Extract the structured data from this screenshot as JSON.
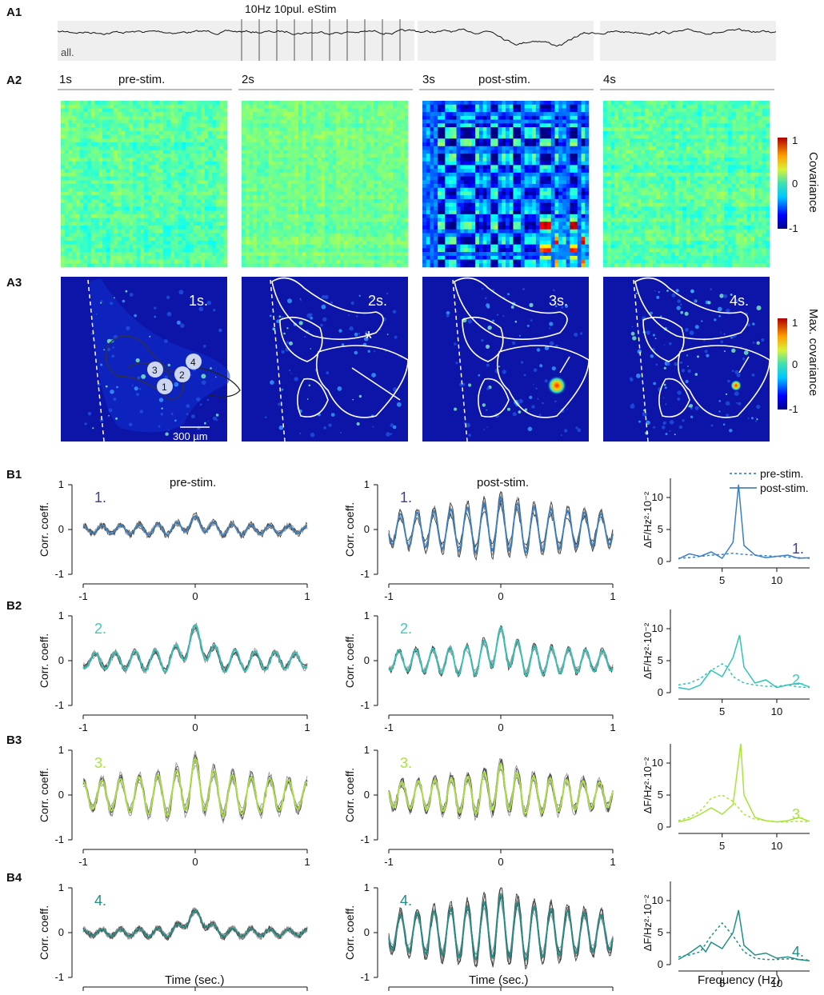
{
  "panels": {
    "A1": "A1",
    "A2": "A2",
    "A3": "A3",
    "B1": "B1",
    "B2": "B2",
    "B3": "B3",
    "B4": "B4"
  },
  "a1": {
    "trace_label": "all.",
    "stim_label": "10Hz 10pul. eStim",
    "pulse_count": 10
  },
  "a2": {
    "seconds": [
      "1s",
      "2s",
      "3s",
      "4s"
    ],
    "pre_label": "pre-stim.",
    "post_label": "post-stim.",
    "colorbar": {
      "title": "Covariance",
      "ticks": [
        "1",
        "0",
        "-1"
      ]
    }
  },
  "a3": {
    "seconds": [
      "1s.",
      "2s.",
      "3s.",
      "4s."
    ],
    "scalebar": "300 µm",
    "roi_numbers": [
      "1",
      "2",
      "3",
      "4"
    ],
    "asterisk": "*",
    "colorbar": {
      "title": "Max. covariance",
      "ticks": [
        "1",
        "0",
        "-1"
      ]
    }
  },
  "colors": {
    "roi1": "#3a7fc0",
    "roi2": "#2fc4b8",
    "roi3": "#a9e33a",
    "roi4": "#1f8f86",
    "roi1_num": "#3b3f8c",
    "roi2_num": "#3cc9bf",
    "roi3_num": "#a9e33a",
    "roi4_num": "#1f8f86"
  },
  "b": {
    "col_titles": [
      "pre-stim.",
      "post-stim."
    ],
    "ylabel": "Corr. coeff.",
    "xlabel_time": "Time (sec.)",
    "ylabel_psd": "ΔF/Hz²·10⁻²",
    "xlabel_freq": "Frequency (Hz)",
    "legend": {
      "pre": "pre-stim.",
      "post": "post-stim."
    },
    "row_numbers": [
      "1.",
      "2.",
      "3.",
      "4."
    ]
  },
  "chart_data": [
    {
      "type": "line",
      "panel": "B1-pre",
      "x_range": [
        -1,
        1
      ],
      "ylim": [
        -1,
        1
      ],
      "xticks": [
        "-1",
        "0",
        "1"
      ],
      "yticks": [
        "1",
        "0",
        "-1"
      ],
      "series": [
        {
          "freq_hz": 6,
          "amplitude": 0.15,
          "peak_at_0": 0.3
        }
      ]
    },
    {
      "type": "line",
      "panel": "B1-post",
      "x_range": [
        -1,
        1
      ],
      "ylim": [
        -1,
        1
      ],
      "xticks": [
        "-1",
        "0",
        "1"
      ],
      "yticks": [
        "1",
        "0",
        "-1"
      ],
      "series": [
        {
          "freq_hz": 6.7,
          "amplitude": 0.6,
          "peak_at_0": 0.72
        }
      ]
    },
    {
      "type": "line",
      "panel": "B1-psd",
      "xlim": [
        1,
        13
      ],
      "ylim": [
        0,
        13
      ],
      "xticks": [
        "5",
        "10"
      ],
      "yticks": [
        "10",
        "5",
        "0"
      ],
      "series": [
        {
          "name": "pre-stim.",
          "x": [
            1,
            2,
            3,
            4,
            5,
            6,
            7,
            8,
            9,
            10,
            11,
            12,
            13
          ],
          "y": [
            0.5,
            0.6,
            0.8,
            1.0,
            1.1,
            1.3,
            1.1,
            1.0,
            0.9,
            0.8,
            0.7,
            0.6,
            0.5
          ]
        },
        {
          "name": "post-stim.",
          "x": [
            1,
            2,
            3,
            4,
            5,
            6,
            6.5,
            7,
            8,
            9,
            10,
            11,
            12,
            13
          ],
          "y": [
            0.4,
            1.2,
            0.8,
            1.5,
            0.5,
            3,
            12,
            2.5,
            1.0,
            0.6,
            0.8,
            1.0,
            0.5,
            0.6
          ]
        }
      ]
    },
    {
      "type": "line",
      "panel": "B2-pre",
      "x_range": [
        -1,
        1
      ],
      "ylim": [
        -1,
        1
      ],
      "xticks": [
        "-1",
        "0",
        "1"
      ],
      "yticks": [
        "1",
        "0",
        "-1"
      ],
      "series": [
        {
          "freq_hz": 5.6,
          "amplitude": 0.3,
          "peak_at_0": 0.8
        }
      ]
    },
    {
      "type": "line",
      "panel": "B2-post",
      "x_range": [
        -1,
        1
      ],
      "ylim": [
        -1,
        1
      ],
      "xticks": [
        "-1",
        "0",
        "1"
      ],
      "yticks": [
        "1",
        "0",
        "-1"
      ],
      "series": [
        {
          "freq_hz": 6.6,
          "amplitude": 0.4,
          "peak_at_0": 0.75
        }
      ]
    },
    {
      "type": "line",
      "panel": "B2-psd",
      "xlim": [
        1,
        13
      ],
      "ylim": [
        0,
        13
      ],
      "xticks": [
        "5",
        "10"
      ],
      "yticks": [
        "10",
        "5",
        "0"
      ],
      "series": [
        {
          "name": "pre-stim.",
          "x": [
            1,
            2,
            3,
            4,
            5,
            5.5,
            6,
            7,
            8,
            9,
            10,
            11,
            12,
            13
          ],
          "y": [
            1.2,
            1.5,
            2.2,
            3.5,
            4.5,
            4.0,
            2.5,
            1.5,
            1.2,
            1.0,
            1.0,
            1.2,
            0.9,
            0.8
          ]
        },
        {
          "name": "post-stim.",
          "x": [
            1,
            2,
            3,
            4,
            5,
            6,
            6.6,
            7,
            8,
            9,
            10,
            11,
            12,
            13
          ],
          "y": [
            0.8,
            0.5,
            1.2,
            3.5,
            2.5,
            5.5,
            9,
            4.0,
            1.5,
            2.0,
            0.8,
            1.2,
            1.5,
            0.9
          ]
        }
      ]
    },
    {
      "type": "line",
      "panel": "B3-pre",
      "x_range": [
        -1,
        1
      ],
      "ylim": [
        -1,
        1
      ],
      "xticks": [
        "-1",
        "0",
        "1"
      ],
      "yticks": [
        "1",
        "0",
        "-1"
      ],
      "series": [
        {
          "freq_hz": 6,
          "amplitude": 0.55,
          "peak_at_0": 0.82
        }
      ]
    },
    {
      "type": "line",
      "panel": "B3-post",
      "x_range": [
        -1,
        1
      ],
      "ylim": [
        -1,
        1
      ],
      "xticks": [
        "-1",
        "0",
        "1"
      ],
      "yticks": [
        "1",
        "0",
        "-1"
      ],
      "series": [
        {
          "freq_hz": 6.8,
          "amplitude": 0.5,
          "peak_at_0": 0.7
        }
      ]
    },
    {
      "type": "line",
      "panel": "B3-psd",
      "xlim": [
        1,
        13
      ],
      "ylim": [
        0,
        13
      ],
      "xticks": [
        "5",
        "10"
      ],
      "yticks": [
        "10",
        "5",
        "0"
      ],
      "series": [
        {
          "name": "pre-stim.",
          "x": [
            1,
            2,
            3,
            4,
            5,
            6,
            7,
            8,
            9,
            10,
            11,
            12,
            13
          ],
          "y": [
            1.0,
            1.5,
            2.5,
            4.5,
            5.0,
            4.0,
            2.0,
            1.2,
            1.0,
            0.8,
            0.8,
            0.9,
            0.8
          ]
        },
        {
          "name": "post-stim.",
          "x": [
            1,
            2,
            3,
            4,
            5,
            6,
            6.7,
            7,
            8,
            9,
            10,
            11,
            12,
            13
          ],
          "y": [
            0.8,
            1.2,
            2.0,
            3.0,
            2.0,
            3.5,
            13,
            5,
            1.5,
            1.0,
            0.8,
            1.0,
            1.5,
            0.9
          ]
        }
      ]
    },
    {
      "type": "line",
      "panel": "B4-pre",
      "x_range": [
        -1,
        1
      ],
      "ylim": [
        -1,
        1
      ],
      "xticks": [
        "-1",
        "0",
        "1"
      ],
      "yticks": [
        "1",
        "0",
        "-1"
      ],
      "series": [
        {
          "freq_hz": 6,
          "amplitude": 0.12,
          "peak_at_0": 0.5
        }
      ]
    },
    {
      "type": "line",
      "panel": "B4-post",
      "x_range": [
        -1,
        1
      ],
      "ylim": [
        -1,
        1
      ],
      "xticks": [
        "-1",
        "0",
        "1"
      ],
      "yticks": [
        "1",
        "0",
        "-1"
      ],
      "series": [
        {
          "freq_hz": 6.7,
          "amplitude": 0.7,
          "peak_at_0": 0.85
        }
      ]
    },
    {
      "type": "line",
      "panel": "B4-psd",
      "xlim": [
        1,
        13
      ],
      "ylim": [
        0,
        13
      ],
      "xticks": [
        "5",
        "10"
      ],
      "yticks": [
        "10",
        "5",
        "0"
      ],
      "series": [
        {
          "name": "pre-stim.",
          "x": [
            1,
            2,
            3,
            4,
            5,
            6,
            7,
            8,
            9,
            10,
            11,
            12,
            13
          ],
          "y": [
            1.2,
            1.5,
            2.0,
            4.5,
            6.5,
            4.5,
            2.0,
            1.0,
            0.8,
            0.8,
            0.9,
            0.8,
            0.7
          ]
        },
        {
          "name": "post-stim.",
          "x": [
            1,
            2,
            3,
            3.5,
            4,
            5,
            6,
            6.5,
            7,
            8,
            9,
            10,
            11,
            12,
            13
          ],
          "y": [
            0.8,
            1.8,
            3.0,
            2.0,
            3.5,
            2.5,
            5,
            8.5,
            3.0,
            1.5,
            1.8,
            1.0,
            1.2,
            0.8,
            0.6
          ]
        }
      ]
    }
  ]
}
